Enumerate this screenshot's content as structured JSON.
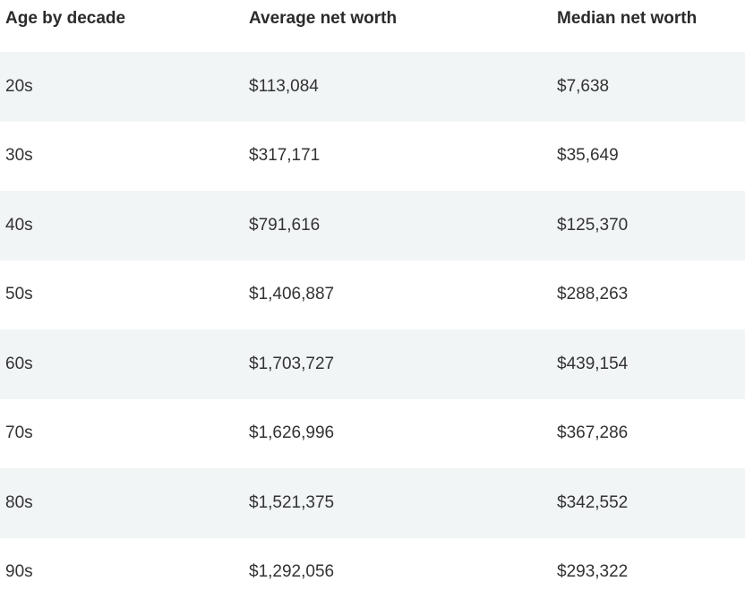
{
  "table": {
    "headers": {
      "age": "Age by decade",
      "average": "Average net worth",
      "median": "Median net worth"
    },
    "rows": [
      {
        "age": "20s",
        "average": "$113,084",
        "median": "$7,638"
      },
      {
        "age": "30s",
        "average": "$317,171",
        "median": "$35,649"
      },
      {
        "age": "40s",
        "average": "$791,616",
        "median": "$125,370"
      },
      {
        "age": "50s",
        "average": "$1,406,887",
        "median": "$288,263"
      },
      {
        "age": "60s",
        "average": "$1,703,727",
        "median": "$439,154"
      },
      {
        "age": "70s",
        "average": "$1,626,996",
        "median": "$367,286"
      },
      {
        "age": "80s",
        "average": "$1,521,375",
        "median": "$342,552"
      },
      {
        "age": "90s",
        "average": "$1,292,056",
        "median": "$293,322"
      }
    ]
  },
  "colors": {
    "stripe": "#f1f5f6",
    "text": "#333333"
  }
}
